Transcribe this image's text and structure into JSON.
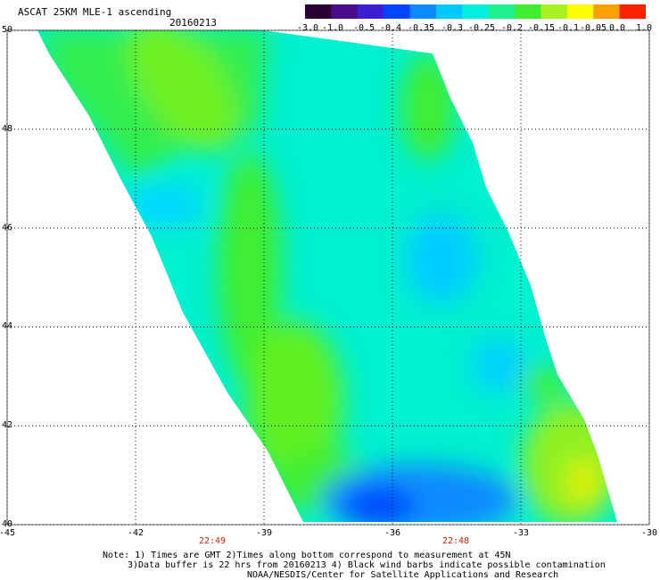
{
  "header": {
    "title": "ASCAT 25KM MLE-1 ascending",
    "date": "20160213"
  },
  "colorbar": {
    "labels": [
      "-3.0",
      "-1.0",
      "-0.5",
      "-0.4",
      "-0.35",
      "-0.3",
      "-0.25",
      "-0.2",
      "-0.15",
      "-0.1",
      "-0.05",
      "0.0",
      "1.0"
    ],
    "colors": [
      "#2a0033",
      "#4b0a8a",
      "#3c1fd0",
      "#0044ff",
      "#0a8aff",
      "#00c8ff",
      "#00f0e0",
      "#20f090",
      "#40ee30",
      "#a8f020",
      "#ffff00",
      "#ffa000",
      "#ff2000"
    ]
  },
  "axes": {
    "lat_labels": [
      "50",
      "48",
      "46",
      "44",
      "42",
      "40"
    ],
    "lon_labels": [
      "-45",
      "-42",
      "-39",
      "-36",
      "-33",
      "-30"
    ],
    "lat_range": [
      40,
      50
    ],
    "lon_range": [
      -45,
      -30
    ]
  },
  "times": [
    "22:49",
    "22:48"
  ],
  "notes": {
    "line1": "Note: 1) Times are GMT 2)Times along bottom correspond to measurement at 45N",
    "line2": "3)Data buffer is 22 hrs from 20160213 4) Black wind barbs indicate possible contamination",
    "line3": "NOAA/NESDIS/Center for Satellite Applications and Research"
  }
}
